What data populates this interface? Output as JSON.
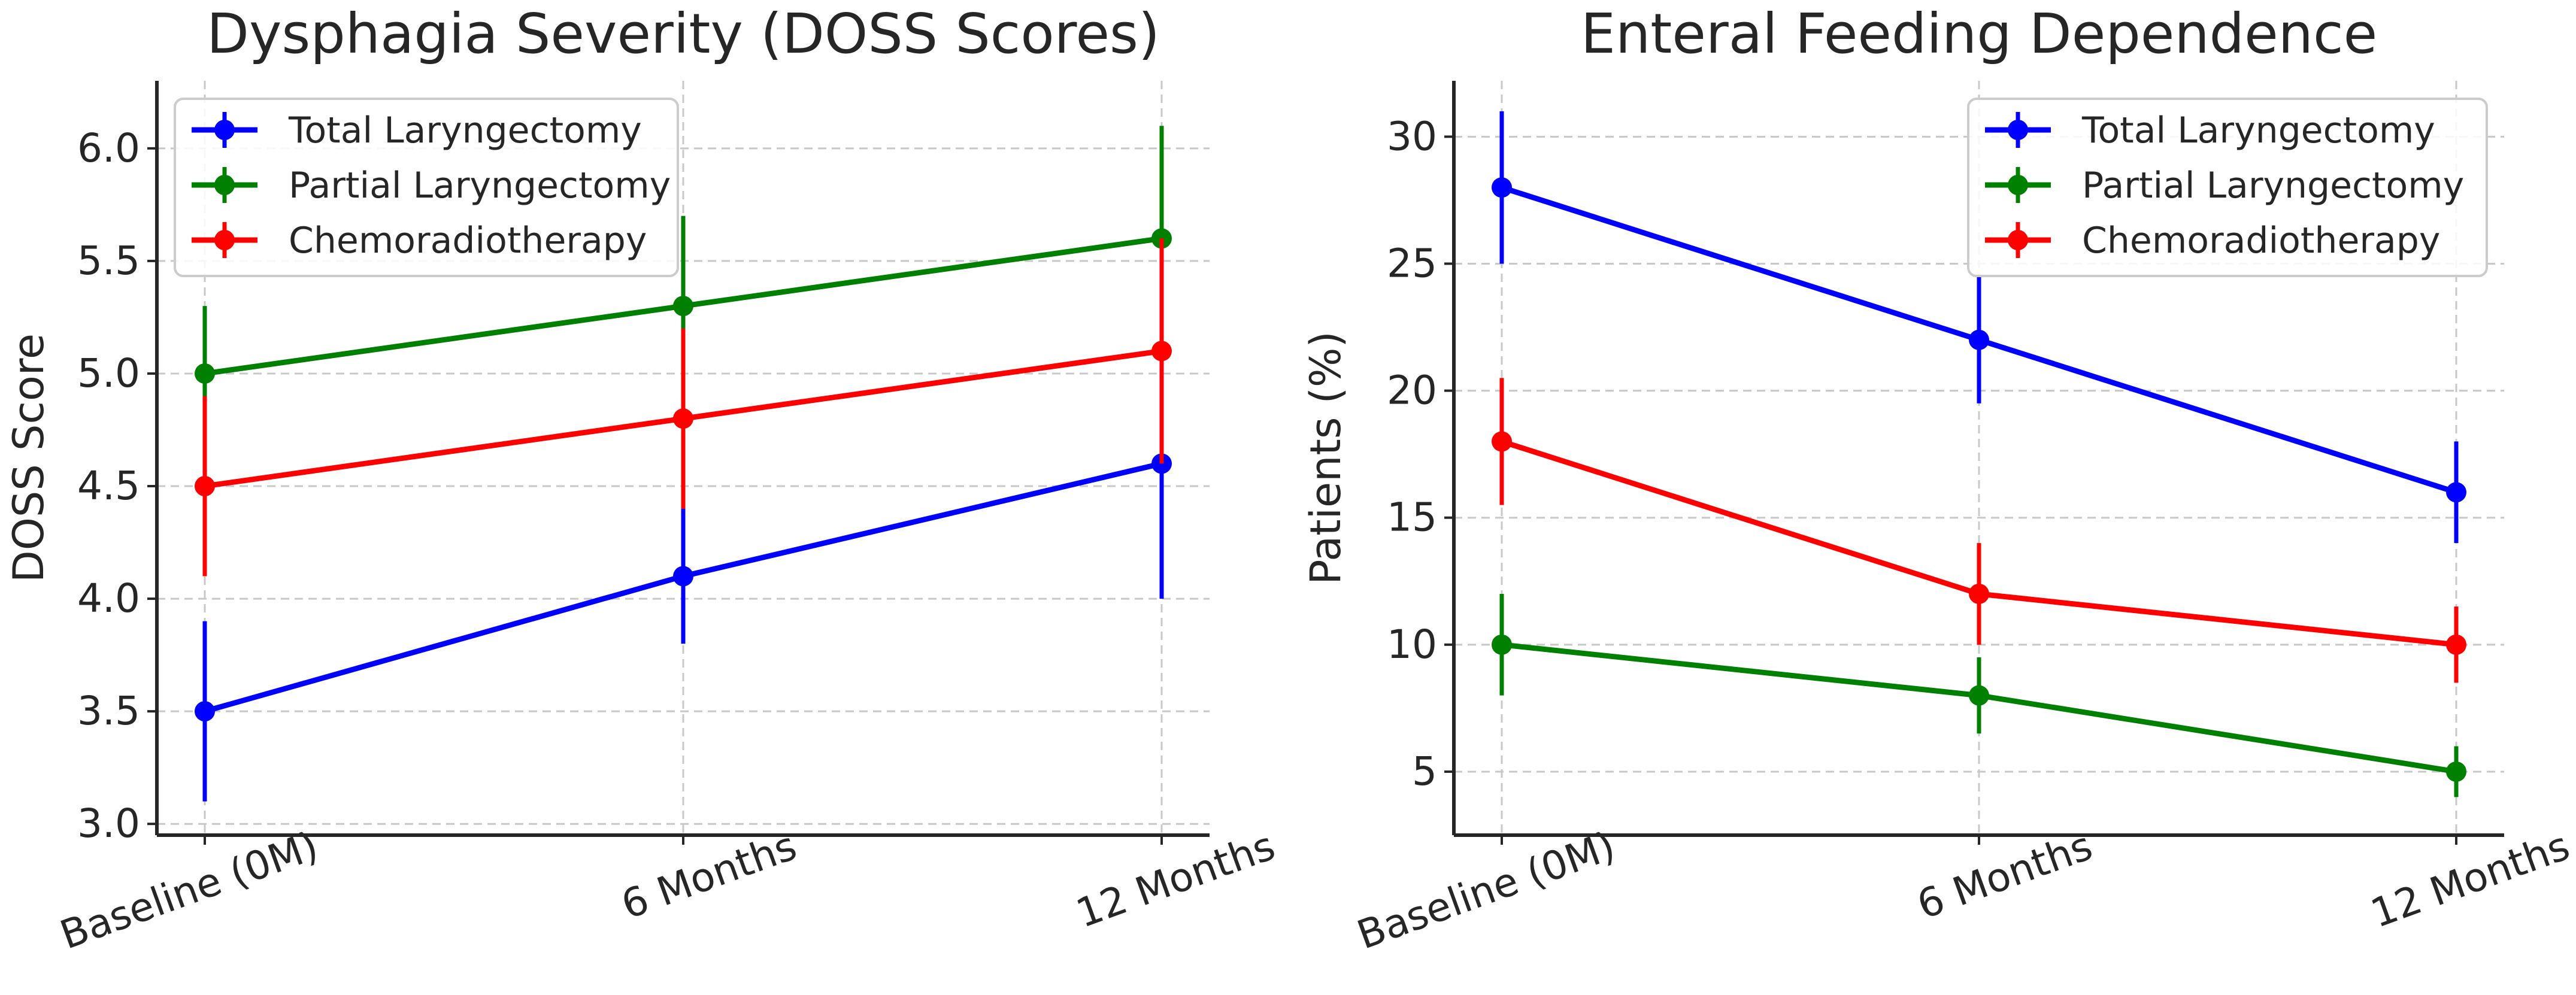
{
  "chart_data": [
    {
      "type": "line",
      "title": "Dysphagia Severity (DOSS Scores)",
      "xlabel": "",
      "ylabel": "DOSS Score",
      "categories": [
        "Baseline (0M)",
        "6 Months",
        "12 Months"
      ],
      "ylim": [
        2.95,
        6.3
      ],
      "yticks": [
        3.0,
        3.5,
        4.0,
        4.5,
        5.0,
        5.5,
        6.0
      ],
      "ytick_labels": [
        "3.0",
        "3.5",
        "4.0",
        "4.5",
        "5.0",
        "5.5",
        "6.0"
      ],
      "grid": true,
      "legend_position": "top-left",
      "series": [
        {
          "name": "Total Laryngectomy",
          "color": "#0000ff",
          "values": [
            3.5,
            4.1,
            4.6
          ],
          "errors": [
            0.4,
            0.3,
            0.6
          ]
        },
        {
          "name": "Partial Laryngectomy",
          "color": "#008000",
          "values": [
            5.0,
            5.3,
            5.6
          ],
          "errors": [
            0.3,
            0.4,
            0.5
          ]
        },
        {
          "name": "Chemoradiotherapy",
          "color": "#ff0000",
          "values": [
            4.5,
            4.8,
            5.1
          ],
          "errors": [
            0.4,
            0.4,
            0.5
          ]
        }
      ]
    },
    {
      "type": "line",
      "title": "Enteral Feeding Dependence",
      "xlabel": "",
      "ylabel": "Patients (%)",
      "categories": [
        "Baseline (0M)",
        "6 Months",
        "12 Months"
      ],
      "ylim": [
        2.5,
        32.2
      ],
      "yticks": [
        5,
        10,
        15,
        20,
        25,
        30
      ],
      "ytick_labels": [
        "5",
        "10",
        "15",
        "20",
        "25",
        "30"
      ],
      "grid": true,
      "legend_position": "top-right",
      "series": [
        {
          "name": "Total Laryngectomy",
          "color": "#0000ff",
          "values": [
            28,
            22,
            16
          ],
          "errors": [
            3,
            2.5,
            2
          ]
        },
        {
          "name": "Partial Laryngectomy",
          "color": "#008000",
          "values": [
            10,
            8,
            5
          ],
          "errors": [
            2,
            1.5,
            1
          ]
        },
        {
          "name": "Chemoradiotherapy",
          "color": "#ff0000",
          "values": [
            18,
            12,
            10
          ],
          "errors": [
            2.5,
            2,
            1.5
          ]
        }
      ]
    }
  ]
}
